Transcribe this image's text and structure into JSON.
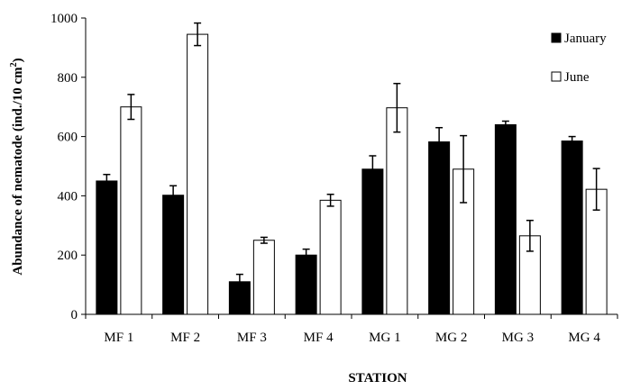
{
  "chart_data": {
    "type": "bar",
    "title": "",
    "xlabel": "STATION",
    "ylabel": "Abundance of nematode (ind./10 cm²)",
    "ylabel_main": "Abundance of nematode (ind./10 cm",
    "ylabel_sup": "2",
    "ylabel_end": ")",
    "categories": [
      "MF 1",
      "MF 2",
      "MF 3",
      "MF 4",
      "MG 1",
      "MG 2",
      "MG 3",
      "MG 4"
    ],
    "ylim": [
      0,
      1000
    ],
    "yticks": [
      "0",
      "200",
      "400",
      "600",
      "800",
      "1000"
    ],
    "legend_position": "top-right",
    "grid": false,
    "series": [
      {
        "name": "January",
        "color": "#000000",
        "values": [
          450,
          402,
          110,
          200,
          490,
          582,
          640,
          585
        ],
        "errors": [
          22,
          32,
          25,
          20,
          45,
          48,
          12,
          15
        ]
      },
      {
        "name": "June",
        "color": "#ffffff",
        "values": [
          700,
          945,
          250,
          385,
          697,
          490,
          265,
          422
        ],
        "errors": [
          42,
          38,
          10,
          20,
          82,
          113,
          52,
          70
        ]
      }
    ]
  }
}
